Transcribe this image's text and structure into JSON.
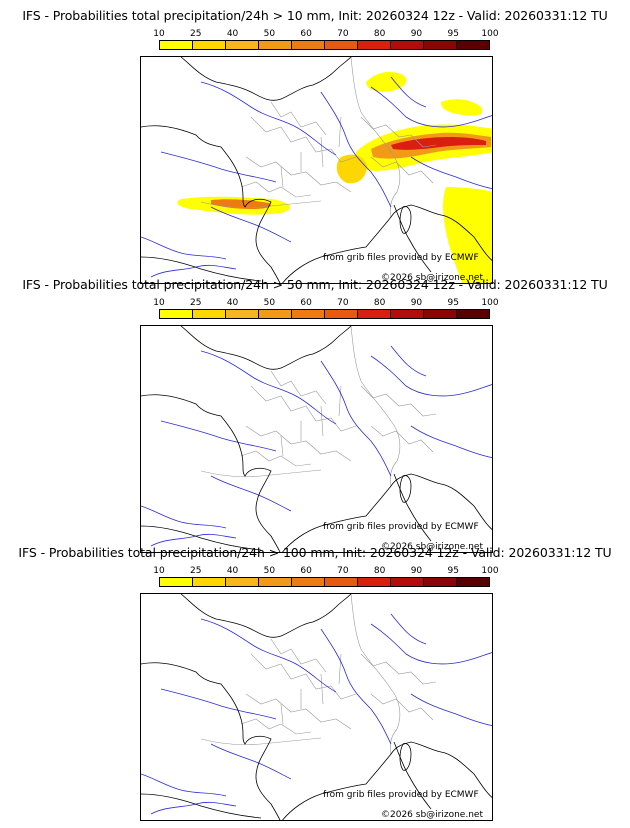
{
  "colors": {
    "coast": "#000000",
    "rivers": "#2b2bd9",
    "borders": "#9a9a9a",
    "prob_scale": [
      "#ffff00",
      "#ffd700",
      "#f7b520",
      "#f29a18",
      "#ee7a12",
      "#e85a10",
      "#d81f10",
      "#b20c0c",
      "#8b0505",
      "#5a0000"
    ]
  },
  "legend": {
    "ticks": [
      "10",
      "25",
      "40",
      "50",
      "60",
      "70",
      "80",
      "90",
      "95",
      "100"
    ]
  },
  "panels": [
    {
      "title": "IFS - Probabilities total precipitation/24h > 10 mm, Init: 20260324 12z - Valid: 20260331:12 TU",
      "credit_source": "from grib files provided by ECMWF",
      "credit_copyright": "©2026 sb@irizone.net",
      "has_precip": true
    },
    {
      "title": "IFS - Probabilities total precipitation/24h > 50 mm, Init: 20260324 12z - Valid: 20260331:12 TU",
      "credit_source": "from grib files provided by ECMWF",
      "credit_copyright": "©2026 sb@irizone.net",
      "has_precip": false
    },
    {
      "title": "IFS - Probabilities total precipitation/24h > 100 mm, Init: 20260324 12z - Valid: 20260331:12 TU",
      "credit_source": "from grib files provided by ECMWF",
      "credit_copyright": "©2026 sb@irizone.net",
      "has_precip": false
    }
  ]
}
